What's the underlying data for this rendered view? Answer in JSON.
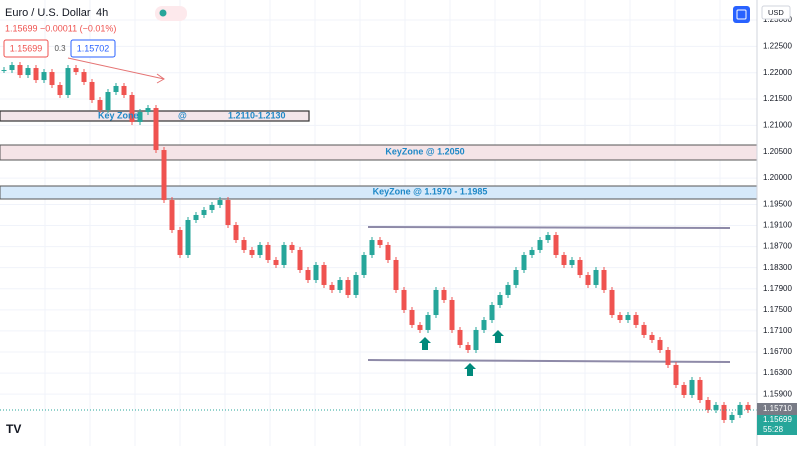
{
  "header": {
    "symbol": "Euro / U.S. Dollar",
    "interval": "4h",
    "quote": "1.15699 −0.00011 (−0.01%)",
    "sell": "1.15699",
    "spread": "0.3",
    "buy": "1.15702",
    "currency": "USD"
  },
  "annotations": {
    "zone1": "Key Zone",
    "zone1_at": "@",
    "zone1_range": "1.2110-1.2130",
    "zone2": "KeyZone @ 1.2050",
    "zone3": "KeyZone @ 1.1970 - 1.1985"
  },
  "price_labels": [
    "1.15710",
    "1.15699",
    "55:28"
  ],
  "chart_data": {
    "type": "candlestick",
    "up_color": "#26a69a",
    "down_color": "#ef5350",
    "values": [
      1.22051,
      1.22146,
      1.21956,
      1.22089,
      1.21861,
      1.22013,
      1.21767,
      1.21577,
      1.22089,
      1.22013,
      1.21824,
      1.21482,
      1.21292,
      1.21634,
      1.21748,
      1.21577,
      1.21065,
      1.21254,
      1.2133,
      1.20533,
      1.19584,
      1.19015,
      1.18541,
      1.19205,
      1.193,
      1.19395,
      1.1949,
      1.19584,
      1.1911,
      1.18825,
      1.18636,
      1.18541,
      1.18731,
      1.18446,
      1.18351,
      1.18731,
      1.18636,
      1.18256,
      1.18066,
      1.18351,
      1.17972,
      1.17877,
      1.18066,
      1.17782,
      1.18161,
      1.18541,
      1.18825,
      1.18731,
      1.18446,
      1.17877,
      1.17497,
      1.17213,
      1.17118,
      1.17402,
      1.17877,
      1.17687,
      1.17118,
      1.16833,
      1.16738,
      1.17118,
      1.17307,
      1.17592,
      1.17782,
      1.17972,
      1.18256,
      1.18541,
      1.18636,
      1.18825,
      1.1892,
      1.18541,
      1.18351,
      1.18446,
      1.18161,
      1.17972,
      1.18256,
      1.17877,
      1.17402,
      1.17307,
      1.17402,
      1.17213,
      1.17023,
      1.16928,
      1.16738,
      1.16454,
      1.16074,
      1.15884,
      1.16169,
      1.15789,
      1.156,
      1.15695,
      1.1541,
      1.15505,
      1.15695,
      1.156
    ],
    "ylim": [
      1.1503,
      1.23285
    ],
    "yticks": [
      {
        "value": 1.23,
        "label": "1.23000"
      },
      {
        "value": 1.225,
        "label": "1.22500"
      },
      {
        "value": 1.22,
        "label": "1.22000"
      },
      {
        "value": 1.215,
        "label": "1.21500"
      },
      {
        "value": 1.21,
        "label": "1.21000"
      },
      {
        "value": 1.205,
        "label": "1.20500"
      },
      {
        "value": 1.2,
        "label": "1.20000"
      },
      {
        "value": 1.195,
        "label": "1.19500"
      },
      {
        "value": 1.191,
        "label": "1.19100"
      },
      {
        "value": 1.187,
        "label": "1.18700"
      },
      {
        "value": 1.183,
        "label": "1.18300"
      },
      {
        "value": 1.179,
        "label": "1.17900"
      },
      {
        "value": 1.175,
        "label": "1.17500"
      },
      {
        "value": 1.171,
        "label": "1.17100"
      },
      {
        "value": 1.167,
        "label": "1.16700"
      },
      {
        "value": 1.163,
        "label": "1.16300"
      },
      {
        "value": 1.159,
        "label": "1.15900"
      }
    ]
  }
}
